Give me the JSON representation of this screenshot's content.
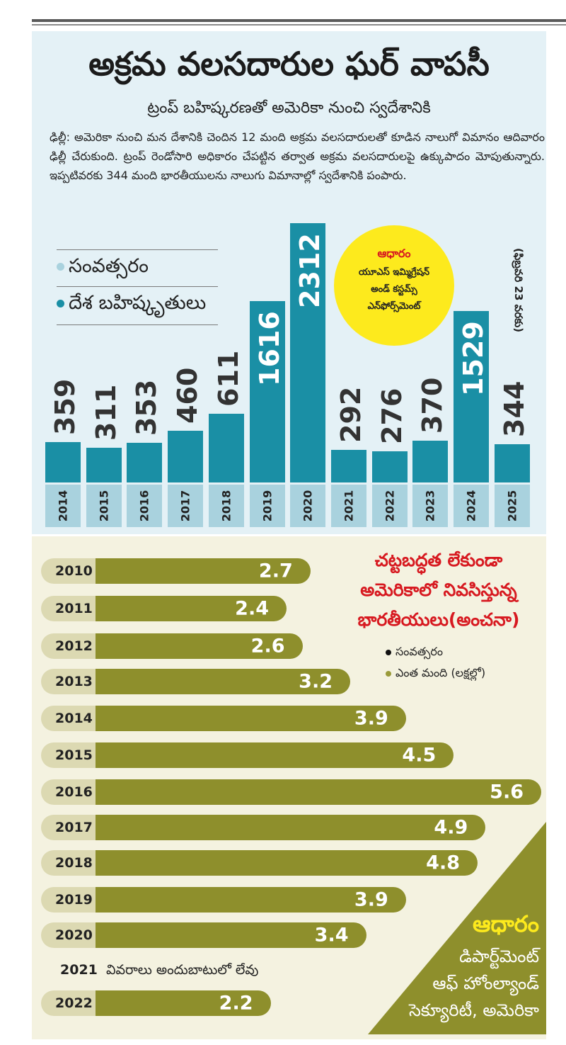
{
  "title": "అక్రమ వలసదారుల ఘర్ వాపసీ",
  "subtitle": "ట్రంప్ బహిష్కరణతో అమెరికా నుంచి స్వదేశానికి",
  "intro": "ఢిల్లీ: అమెరికా నుంచి మన దేశానికి చెందిన 12 మంది అక్రమ వలసదారులతో కూడిన నాలుగో విమానం ఆదివారం ఢిల్లీ చేరుకుంది. ట్రంప్ రెండోసారి అధికారం చేపట్టిన తర్వాత అక్రమ వలసదారులపై ఉక్కుపాదం మోపుతున్నారు. ఇప్పటివరకు 344 మంది భారతీయులను నాలుగు విమానాల్లో స్వదేశానికి పంపారు.",
  "legend1": {
    "year": "సంవత్సరం",
    "deportees": "దేశ బహిష్కృతులు"
  },
  "source1": {
    "heading": "ఆధారం",
    "line1": "యూఎస్ ఇమ్మిగ్రేషన్",
    "line2": "అండ్ కస్టమ్స్",
    "line3": "ఎన్‌ఫోర్స్‌మెంట్"
  },
  "side_note": "(ఫిబ్రవరి 23 వరకు)",
  "colors": {
    "teal": "#1a8fa5",
    "light_teal": "#a9d2de",
    "olive": "#8e8f2c",
    "beige": "#dcd9b2",
    "yellow": "#fdea1d",
    "red": "#d71920"
  },
  "chart2_title": {
    "line1": "చట్టబద్ధత లేకుండా",
    "line2": "అమెరికాలో నివసిస్తున్న",
    "line3": "భారతీయులు(అంచనా)"
  },
  "legend2": {
    "year": "సంవత్సరం",
    "count": "ఎంత మంది (లక్షల్లో)"
  },
  "note_2021": {
    "year": "2021",
    "text": "వివరాలు అందుబాటులో లేవు"
  },
  "source2": {
    "heading": "ఆధారం",
    "line1": "డిపార్ట్‌మెంట్",
    "line2": "ఆఫ్ హోంల్యాండ్",
    "line3": "సెక్యూరిటీ, అమెరికా"
  },
  "chart_data": [
    {
      "type": "bar",
      "categories": [
        "2014",
        "2015",
        "2016",
        "2017",
        "2018",
        "2019",
        "2020",
        "2021",
        "2022",
        "2023",
        "2024",
        "2025"
      ],
      "values": [
        359,
        311,
        353,
        460,
        611,
        1616,
        2312,
        292,
        276,
        370,
        1529,
        344
      ],
      "ylim": [
        0,
        2312
      ]
    },
    {
      "type": "bar",
      "orientation": "horizontal",
      "categories": [
        "2010",
        "2011",
        "2012",
        "2013",
        "2014",
        "2015",
        "2016",
        "2017",
        "2018",
        "2019",
        "2020",
        "2022"
      ],
      "labels": [
        "2.7",
        "2.4",
        "2.6",
        "3.2",
        "3.9",
        "4.5",
        "5.6",
        "4.9",
        "4.8",
        "3.9",
        "3.4",
        "2.2"
      ],
      "values": [
        2.7,
        2.4,
        2.6,
        3.2,
        3.9,
        4.5,
        5.6,
        4.9,
        4.8,
        3.9,
        3.4,
        2.2
      ],
      "xlim": [
        0,
        5.6
      ]
    }
  ]
}
